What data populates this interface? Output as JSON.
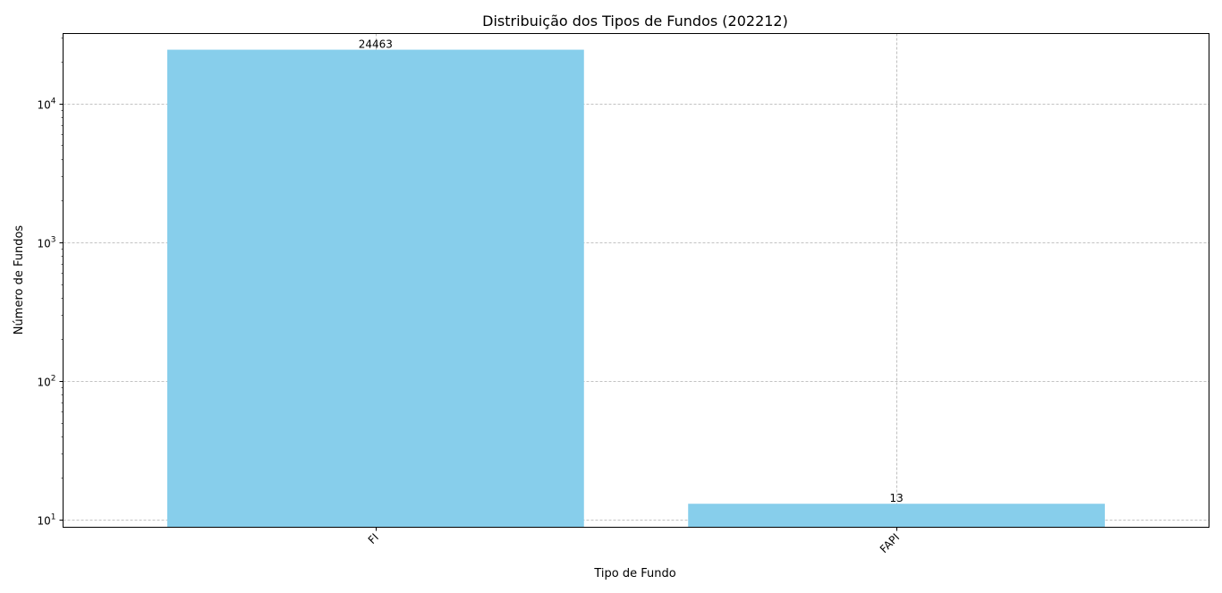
{
  "chart_data": {
    "type": "bar",
    "title": "Distribuição dos Tipos de Fundos (202212)",
    "xlabel": "Tipo de Fundo",
    "ylabel": "Número de Fundos",
    "categories": [
      "FI",
      "FAPI"
    ],
    "values": [
      24463,
      13
    ],
    "data_labels": [
      "24463",
      "13"
    ],
    "y_scale": "log",
    "ylim": [
      8.8,
      32000
    ],
    "y_ticks": [
      {
        "value": 10,
        "base": "10",
        "exp": "1"
      },
      {
        "value": 100,
        "base": "10",
        "exp": "2"
      },
      {
        "value": 1000,
        "base": "10",
        "exp": "3"
      },
      {
        "value": 10000,
        "base": "10",
        "exp": "4"
      }
    ],
    "grid": true,
    "bar_color": "#87ceeb",
    "x_tick_rotation": "45"
  }
}
